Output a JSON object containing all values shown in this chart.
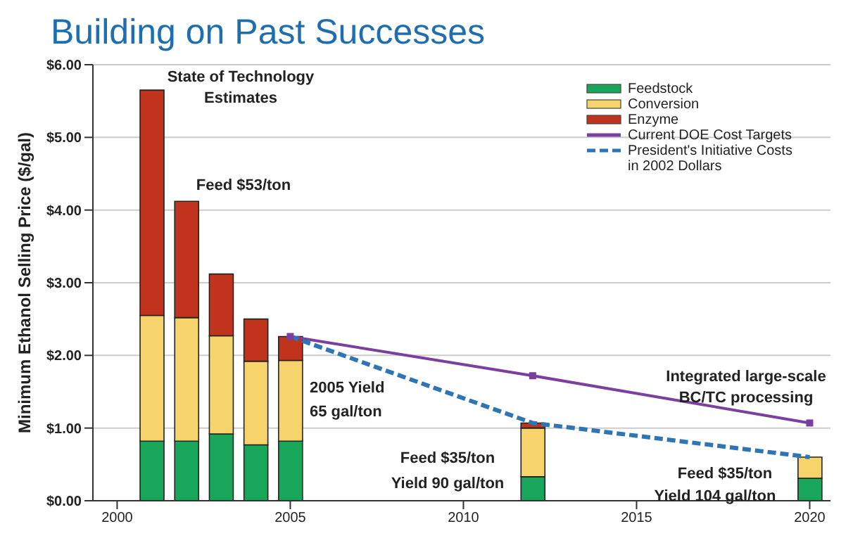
{
  "chart_data": {
    "type": "bar",
    "title": "Building on Past Successes",
    "ylabel": "Minimum Ethanol Selling Price ($/gal)",
    "stacked": true,
    "x": [
      2001,
      2002,
      2003,
      2004,
      2005,
      2012,
      2020
    ],
    "series": [
      {
        "name": "Feedstock",
        "color": "#17a65a",
        "values": [
          0.82,
          0.82,
          0.92,
          0.77,
          0.82,
          0.33,
          0.31
        ]
      },
      {
        "name": "Conversion",
        "color": "#f7d36b",
        "values": [
          1.73,
          1.7,
          1.35,
          1.15,
          1.11,
          0.67,
          0.29
        ]
      },
      {
        "name": "Enzyme",
        "color": "#c0341d",
        "values": [
          3.1,
          1.6,
          0.85,
          0.58,
          0.33,
          0.07,
          null
        ]
      },
      {
        "name": "Current DOE Cost Targets",
        "type": "line",
        "color": "#7b3fa0",
        "x": [
          2005,
          2012,
          2020
        ],
        "values": [
          2.26,
          1.72,
          1.07
        ],
        "marker": "square",
        "line_style": "solid"
      },
      {
        "name": "President's Initiative Costs in 2002 Dollars",
        "type": "line",
        "color": "#2e75b6",
        "x": [
          2005,
          2012,
          2020
        ],
        "values": [
          2.26,
          1.07,
          0.6
        ],
        "marker": "none",
        "line_style": "dashed"
      }
    ],
    "xlim": [
      1999.3,
      2020.6
    ],
    "xticks": [
      2000,
      2005,
      2010,
      2015,
      2020
    ],
    "ylim": [
      0,
      6
    ],
    "yticks": [
      {
        "value": 0,
        "label": "$0.00"
      },
      {
        "value": 1,
        "label": "$1.00"
      },
      {
        "value": 2,
        "label": "$2.00"
      },
      {
        "value": 3,
        "label": "$3.00"
      },
      {
        "value": 4,
        "label": "$4.00"
      },
      {
        "value": 5,
        "label": "$5.00"
      },
      {
        "value": 6,
        "label": "$6.00"
      }
    ],
    "grid": "y",
    "legend": "top right",
    "annotations": [
      "State of Technology",
      "Estimates",
      "Feed $53/ton",
      "2005 Yield",
      "65 gal/ton",
      "Feed $35/ton",
      "Yield 90 gal/ton",
      "Integrated large-scale",
      "BC/TC processing",
      "Feed $35/ton",
      "Yield 104 gal/ton"
    ]
  }
}
